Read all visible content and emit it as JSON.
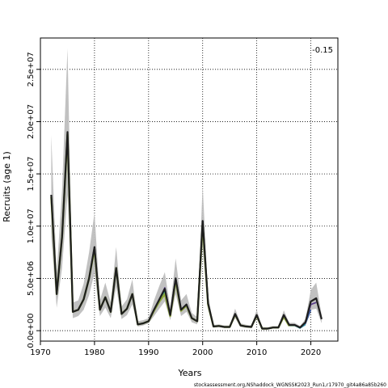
{
  "chart_data": {
    "type": "line",
    "xlabel": "Years",
    "ylabel": "Recruits (age 1)",
    "annotation": "-0.15",
    "footer": "stockassessment.org,NShaddock_WGNSSK2023_Run1,r17970_git4a86a85b260",
    "xlim": [
      1970,
      2025
    ],
    "ylim": [
      -1000000,
      28000000
    ],
    "x_ticks": [
      {
        "value": 1970,
        "label": "1970"
      },
      {
        "value": 1980,
        "label": "1980"
      },
      {
        "value": 1990,
        "label": "1990"
      },
      {
        "value": 2000,
        "label": "2000"
      },
      {
        "value": 2010,
        "label": "2010"
      },
      {
        "value": 2020,
        "label": "2020"
      }
    ],
    "y_ticks": [
      {
        "value": 0,
        "label": "0.0e+00"
      },
      {
        "value": 5000000,
        "label": "5.0e+06"
      },
      {
        "value": 10000000,
        "label": "1.0e+07"
      },
      {
        "value": 15000000,
        "label": "1.5e+07"
      },
      {
        "value": 20000000,
        "label": "2.0e+07"
      },
      {
        "value": 25000000,
        "label": "2.5e+07"
      }
    ],
    "grid": true,
    "colors": {
      "band": "#bebebe",
      "current": "#1e1e1e",
      "peel_lines": [
        "#5a3d8a",
        "#3b5a9a",
        "#2e8fb0",
        "#2bb0a8",
        "#5cb070",
        "#8fa83a"
      ]
    },
    "years": [
      1972,
      1973,
      1974,
      1975,
      1976,
      1977,
      1978,
      1979,
      1980,
      1981,
      1982,
      1983,
      1984,
      1985,
      1986,
      1987,
      1988,
      1989,
      1990,
      1991,
      1992,
      1993,
      1994,
      1995,
      1996,
      1997,
      1998,
      1999,
      2000,
      2001,
      2002,
      2003,
      2004,
      2005,
      2006,
      2007,
      2008,
      2009,
      2010,
      2011,
      2012,
      2013,
      2014,
      2015,
      2016,
      2017,
      2018,
      2019,
      2020,
      2021,
      2022
    ],
    "estimate": [
      13000000,
      3500000,
      9000000,
      19000000,
      1800000,
      2000000,
      3000000,
      5000000,
      8000000,
      2000000,
      3200000,
      1800000,
      6000000,
      1600000,
      2100000,
      3500000,
      600000,
      700000,
      900000,
      2000000,
      3000000,
      4000000,
      1500000,
      5000000,
      2000000,
      2500000,
      1200000,
      900000,
      10500000,
      2600000,
      400000,
      450000,
      350000,
      350000,
      1600000,
      500000,
      400000,
      350000,
      1500000,
      200000,
      200000,
      300000,
      300000,
      1500000,
      550000,
      550000,
      300000,
      800000,
      2800000,
      3100000,
      1100000
    ],
    "lower": [
      9000000,
      2200000,
      6000000,
      13000000,
      1200000,
      1400000,
      2000000,
      3400000,
      5500000,
      1400000,
      2200000,
      1200000,
      4200000,
      1100000,
      1500000,
      2500000,
      400000,
      500000,
      700000,
      1400000,
      2100000,
      2800000,
      1000000,
      3500000,
      1400000,
      1800000,
      800000,
      600000,
      8000000,
      2000000,
      300000,
      350000,
      250000,
      250000,
      1200000,
      350000,
      280000,
      250000,
      1100000,
      100000,
      100000,
      200000,
      200000,
      1100000,
      400000,
      400000,
      200000,
      500000,
      2000000,
      2100000,
      700000
    ],
    "upper": [
      18700000,
      5500000,
      13500000,
      27000000,
      2700000,
      2900000,
      4500000,
      7500000,
      11300000,
      2900000,
      4600000,
      2700000,
      8000000,
      2300000,
      3000000,
      4900000,
      900000,
      1000000,
      1200000,
      2900000,
      4300000,
      5600000,
      2200000,
      6900000,
      2900000,
      3500000,
      1700000,
      1300000,
      13900000,
      3400000,
      550000,
      600000,
      500000,
      500000,
      2100000,
      700000,
      560000,
      500000,
      2000000,
      300000,
      300000,
      450000,
      450000,
      1950000,
      750000,
      750000,
      450000,
      1100000,
      3900000,
      4600000,
      1500000
    ],
    "series": [
      {
        "end": 2016,
        "values": [
          12800000,
          3500000,
          9000000,
          18800000,
          1800000,
          2000000,
          3000000,
          5000000,
          7800000,
          2000000,
          3200000,
          1800000,
          6000000,
          1600000,
          2100000,
          3500000,
          600000,
          700000,
          900000,
          1900000,
          2800000,
          3500000,
          1400000,
          4800000,
          1900000,
          2400000,
          1200000,
          900000,
          10200000,
          2500000,
          400000,
          450000,
          350000,
          350000,
          1550000,
          500000,
          400000,
          350000,
          1450000,
          200000,
          200000,
          300000,
          300000,
          1350000,
          450000
        ]
      },
      {
        "end": 2017,
        "values": [
          12800000,
          3500000,
          9000000,
          18800000,
          1800000,
          2000000,
          3000000,
          5000000,
          7800000,
          2000000,
          3200000,
          1800000,
          6000000,
          1600000,
          2100000,
          3500000,
          600000,
          700000,
          900000,
          1900000,
          2800000,
          3600000,
          1400000,
          4900000,
          1900000,
          2400000,
          1200000,
          900000,
          10300000,
          2500000,
          400000,
          450000,
          350000,
          350000,
          1550000,
          500000,
          400000,
          350000,
          1450000,
          200000,
          200000,
          300000,
          300000,
          1400000,
          500000,
          500000
        ]
      },
      {
        "end": 2018,
        "values": [
          12900000,
          3500000,
          9000000,
          18900000,
          1800000,
          2000000,
          3000000,
          5000000,
          7900000,
          2000000,
          3200000,
          1800000,
          6000000,
          1600000,
          2100000,
          3500000,
          600000,
          700000,
          900000,
          1950000,
          2900000,
          3700000,
          1450000,
          4900000,
          1950000,
          2450000,
          1200000,
          900000,
          10400000,
          2550000,
          400000,
          450000,
          350000,
          350000,
          1580000,
          500000,
          400000,
          350000,
          1480000,
          200000,
          200000,
          300000,
          300000,
          1450000,
          520000,
          520000,
          250000
        ]
      },
      {
        "end": 2019,
        "values": [
          12900000,
          3500000,
          9000000,
          18900000,
          1800000,
          2000000,
          3000000,
          5000000,
          7900000,
          2000000,
          3200000,
          1800000,
          6000000,
          1600000,
          2100000,
          3500000,
          600000,
          700000,
          900000,
          1950000,
          2900000,
          3800000,
          1450000,
          4950000,
          1950000,
          2450000,
          1200000,
          900000,
          10400000,
          2550000,
          400000,
          450000,
          350000,
          350000,
          1580000,
          500000,
          400000,
          350000,
          1480000,
          200000,
          200000,
          300000,
          300000,
          1460000,
          530000,
          530000,
          250000,
          600000
        ]
      },
      {
        "end": 2020,
        "values": [
          13000000,
          3500000,
          9000000,
          19000000,
          1800000,
          2000000,
          3000000,
          5000000,
          8000000,
          2000000,
          3200000,
          1800000,
          6000000,
          1600000,
          2100000,
          3500000,
          600000,
          700000,
          900000,
          2000000,
          3000000,
          4000000,
          1500000,
          5000000,
          2000000,
          2500000,
          1200000,
          900000,
          10500000,
          2600000,
          400000,
          450000,
          350000,
          350000,
          1600000,
          500000,
          400000,
          350000,
          1500000,
          200000,
          200000,
          300000,
          300000,
          1500000,
          550000,
          550000,
          300000,
          700000,
          2000000
        ]
      },
      {
        "end": 2021,
        "values": [
          13000000,
          3500000,
          9000000,
          19000000,
          1800000,
          2000000,
          3000000,
          5000000,
          8000000,
          2000000,
          3200000,
          1800000,
          6000000,
          1600000,
          2100000,
          3500000,
          600000,
          700000,
          900000,
          2000000,
          3000000,
          4100000,
          1500000,
          5000000,
          2000000,
          2500000,
          1200000,
          900000,
          10500000,
          2600000,
          400000,
          450000,
          350000,
          350000,
          1600000,
          500000,
          400000,
          350000,
          1500000,
          200000,
          200000,
          300000,
          300000,
          1500000,
          550000,
          550000,
          300000,
          750000,
          2500000,
          2700000
        ]
      }
    ]
  }
}
